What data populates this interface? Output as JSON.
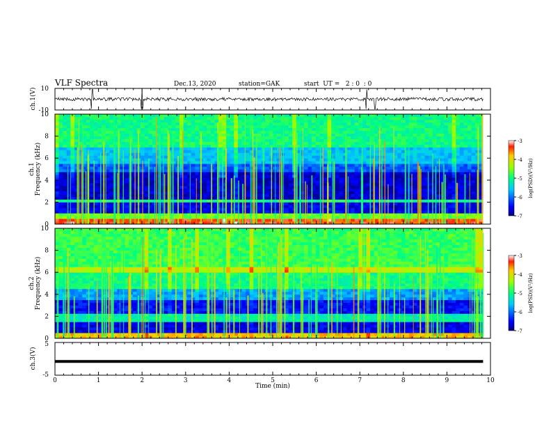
{
  "header": {
    "title": "VLF Spectra",
    "date": "Dec.13, 2020",
    "station": "station=GAK",
    "start": "start  UT =   2 : 0  : 0"
  },
  "chart_data": [
    {
      "type": "line",
      "name": "ch1-waveform",
      "ylabel": "ch.1(V)",
      "ylim": [
        -10,
        10
      ],
      "ytick_labels": [
        "10",
        "-10"
      ],
      "x_range": [
        0,
        10
      ],
      "approx_baseline": 0,
      "note_series": "noisy waveform roughly between -2 and 2 V with spikes near t=0.85, 2.0, 7.15, 7.35 min"
    },
    {
      "type": "heatmap",
      "name": "ch1-spectrogram",
      "ylabel": "ch.1\nFrequency (kHz)",
      "ylim": [
        0,
        10
      ],
      "ytick_labels": [
        "0",
        "2",
        "4",
        "6",
        "8",
        "10"
      ],
      "x_range": [
        0,
        10
      ],
      "data_end_min": 9.83,
      "colorbar": {
        "label": "log(PSD)(V²/Hz)",
        "range": [
          -7,
          -3
        ],
        "tick_labels": [
          "-3",
          "-4",
          "-5",
          "-6",
          "-7"
        ]
      },
      "bands": [
        {
          "from": 0.0,
          "to": 0.5,
          "level": -3.4
        },
        {
          "from": 0.5,
          "to": 1.0,
          "level": -4.6
        },
        {
          "from": 1.0,
          "to": 2.0,
          "level": -6.6
        },
        {
          "from": 2.0,
          "to": 2.2,
          "level": -5.0
        },
        {
          "from": 2.2,
          "to": 4.8,
          "level": -6.7
        },
        {
          "from": 4.8,
          "to": 5.6,
          "level": -6.1
        },
        {
          "from": 5.6,
          "to": 7.0,
          "level": -5.6
        },
        {
          "from": 7.0,
          "to": 10.0,
          "level": -5.0
        }
      ]
    },
    {
      "type": "heatmap",
      "name": "ch2-spectrogram",
      "ylabel": "ch.2\nFrequency (kHz)",
      "ylim": [
        0,
        10
      ],
      "ytick_labels": [
        "0",
        "2",
        "4",
        "6",
        "8",
        "10"
      ],
      "x_range": [
        0,
        10
      ],
      "data_end_min": 9.83,
      "colorbar": {
        "label": "log(PSD)(V²/Hz)",
        "range": [
          -7,
          -3
        ],
        "tick_labels": [
          "-3",
          "-4",
          "-5",
          "-6",
          "-7"
        ]
      },
      "bands": [
        {
          "from": 0.0,
          "to": 0.4,
          "level": -3.8
        },
        {
          "from": 0.4,
          "to": 1.6,
          "level": -6.6
        },
        {
          "from": 1.6,
          "to": 2.2,
          "level": -5.2
        },
        {
          "from": 2.2,
          "to": 3.4,
          "level": -6.5
        },
        {
          "from": 3.4,
          "to": 4.4,
          "level": -5.8
        },
        {
          "from": 4.4,
          "to": 6.0,
          "level": -5.0
        },
        {
          "from": 6.0,
          "to": 6.4,
          "level": -4.2
        },
        {
          "from": 6.4,
          "to": 10.0,
          "level": -4.8
        }
      ]
    },
    {
      "type": "line",
      "name": "ch3-waveform",
      "ylabel": "ch.3(V)",
      "ylim": [
        -5,
        5
      ],
      "ytick_labels": [
        "5",
        "-5"
      ],
      "x_range": [
        0,
        10
      ],
      "constant_value": -0.8
    }
  ],
  "xaxis": {
    "label": "Time (min)",
    "tick_labels": [
      "0",
      "1",
      "2",
      "3",
      "4",
      "5",
      "6",
      "7",
      "8",
      "9",
      "10"
    ]
  },
  "colors": {
    "axis": "#000000",
    "background": "#ffffff"
  }
}
